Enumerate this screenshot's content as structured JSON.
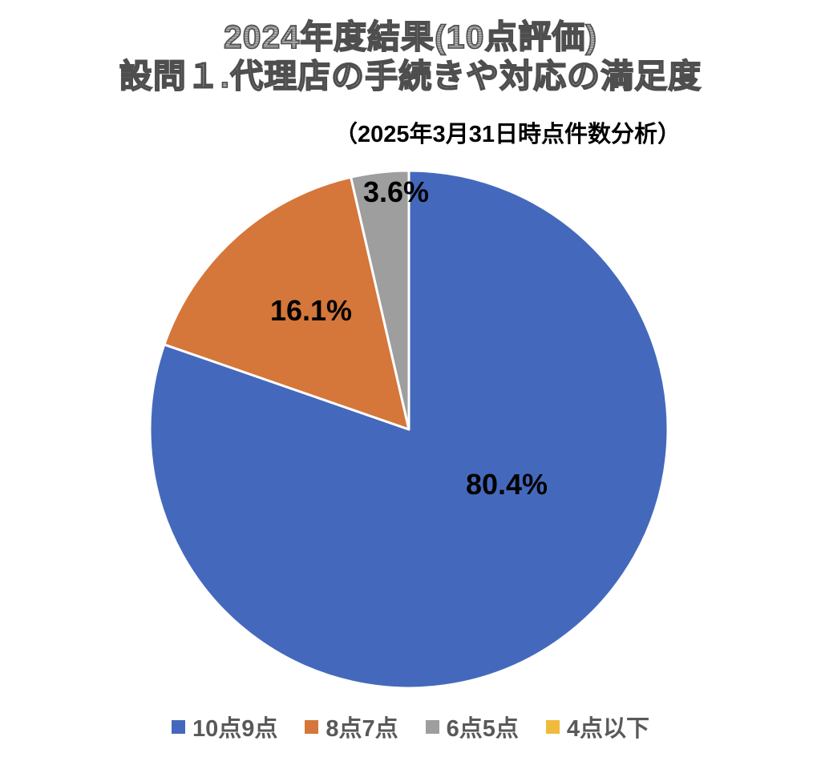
{
  "header": {
    "title_line1": "2024年度結果(10点評価)",
    "title_line2": "設問１.代理店の手続きや対応の満足度",
    "subtitle": "（2025年3月31日時点件数分析）"
  },
  "chart_data": {
    "type": "pie",
    "title": "2024年度結果(10点評価) 設問１.代理店の手続きや対応の満足度",
    "subtitle": "（2025年3月31日時点件数分析）",
    "unit": "%",
    "start_angle_deg": 0,
    "direction": "clockwise",
    "legend_position": "bottom",
    "slices": [
      {
        "name": "10点9点",
        "value": 80.4,
        "label": "80.4%",
        "color": "#4469BC"
      },
      {
        "name": "8点7点",
        "value": 16.1,
        "label": "16.1%",
        "color": "#D5763A"
      },
      {
        "name": "6点5点",
        "value": 3.6,
        "label": "3.6%",
        "color": "#9E9E9E"
      },
      {
        "name": "4点以下",
        "value": 0.0,
        "label": "",
        "color": "#F0BA3D"
      }
    ]
  }
}
